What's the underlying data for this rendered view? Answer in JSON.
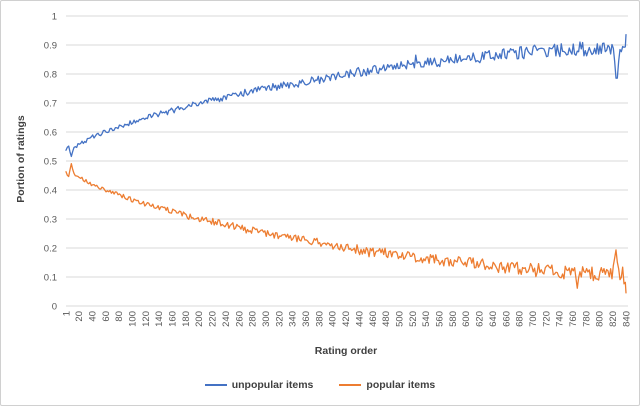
{
  "figure": {
    "background": "#ffffff",
    "border_color": "#d0d0d0"
  },
  "chart_data": {
    "type": "line",
    "title": "",
    "xlabel": "Rating order",
    "ylabel": "Portion of ratings",
    "xlim": [
      1,
      840
    ],
    "ylim": [
      0,
      1
    ],
    "grid": "horizontal",
    "grid_color": "#d9d9d9",
    "axis_text_color": "#595959",
    "axis_title_color": "#404040",
    "legend_position": "bottom-center",
    "y_ticks": [
      "0",
      "0.1",
      "0.2",
      "0.3",
      "0.4",
      "0.5",
      "0.6",
      "0.7",
      "0.8",
      "0.9",
      "1"
    ],
    "x_ticks": [
      1,
      20,
      40,
      60,
      80,
      100,
      120,
      140,
      160,
      180,
      200,
      220,
      240,
      260,
      280,
      300,
      320,
      340,
      360,
      380,
      400,
      420,
      440,
      460,
      480,
      500,
      520,
      540,
      560,
      580,
      600,
      620,
      640,
      660,
      680,
      700,
      720,
      740,
      760,
      780,
      800,
      820,
      840
    ],
    "x_step": 2,
    "noise": {
      "base_amplitude": 0.006,
      "end_amplitude": 0.026,
      "spike_probability": 0.015,
      "spike_factor": 2.2,
      "clamp": [
        0.03,
        0.955
      ]
    },
    "series": [
      {
        "id": "unpopular",
        "name": "unpopular items",
        "color": "#4472c4",
        "noise_seed": 42,
        "anchors": [
          [
            1,
            0.54
          ],
          [
            5,
            0.553
          ],
          [
            9,
            0.511
          ],
          [
            13,
            0.545
          ],
          [
            20,
            0.556
          ],
          [
            30,
            0.569
          ],
          [
            40,
            0.582
          ],
          [
            50,
            0.592
          ],
          [
            60,
            0.601
          ],
          [
            70,
            0.61
          ],
          [
            80,
            0.617
          ],
          [
            90,
            0.625
          ],
          [
            100,
            0.633
          ],
          [
            110,
            0.64
          ],
          [
            120,
            0.649
          ],
          [
            130,
            0.655
          ],
          [
            140,
            0.662
          ],
          [
            150,
            0.667
          ],
          [
            160,
            0.673
          ],
          [
            170,
            0.68
          ],
          [
            180,
            0.688
          ],
          [
            190,
            0.694
          ],
          [
            200,
            0.7
          ],
          [
            220,
            0.708
          ],
          [
            240,
            0.718
          ],
          [
            260,
            0.73
          ],
          [
            280,
            0.741
          ],
          [
            300,
            0.75
          ],
          [
            320,
            0.757
          ],
          [
            340,
            0.765
          ],
          [
            360,
            0.772
          ],
          [
            380,
            0.778
          ],
          [
            400,
            0.79
          ],
          [
            420,
            0.8
          ],
          [
            440,
            0.806
          ],
          [
            460,
            0.812
          ],
          [
            480,
            0.818
          ],
          [
            500,
            0.825
          ],
          [
            520,
            0.83
          ],
          [
            540,
            0.836
          ],
          [
            560,
            0.842
          ],
          [
            580,
            0.847
          ],
          [
            600,
            0.852
          ],
          [
            620,
            0.857
          ],
          [
            640,
            0.862
          ],
          [
            660,
            0.867
          ],
          [
            680,
            0.872
          ],
          [
            700,
            0.876
          ],
          [
            720,
            0.877
          ],
          [
            740,
            0.882
          ],
          [
            760,
            0.886
          ],
          [
            780,
            0.887
          ],
          [
            800,
            0.89
          ],
          [
            812,
            0.897
          ],
          [
            820,
            0.885
          ],
          [
            826,
            0.762
          ],
          [
            831,
            0.9
          ],
          [
            836,
            0.878
          ],
          [
            840,
            0.925
          ]
        ]
      },
      {
        "id": "popular",
        "name": "popular items",
        "color": "#ed7d31",
        "noise_seed": 1337,
        "anchors": [
          [
            1,
            0.46
          ],
          [
            5,
            0.447
          ],
          [
            9,
            0.489
          ],
          [
            13,
            0.455
          ],
          [
            20,
            0.444
          ],
          [
            30,
            0.431
          ],
          [
            40,
            0.418
          ],
          [
            50,
            0.408
          ],
          [
            60,
            0.399
          ],
          [
            70,
            0.39
          ],
          [
            80,
            0.383
          ],
          [
            90,
            0.375
          ],
          [
            100,
            0.367
          ],
          [
            110,
            0.36
          ],
          [
            120,
            0.351
          ],
          [
            130,
            0.345
          ],
          [
            140,
            0.338
          ],
          [
            150,
            0.333
          ],
          [
            160,
            0.327
          ],
          [
            170,
            0.32
          ],
          [
            180,
            0.312
          ],
          [
            190,
            0.306
          ],
          [
            200,
            0.3
          ],
          [
            220,
            0.292
          ],
          [
            240,
            0.282
          ],
          [
            260,
            0.27
          ],
          [
            280,
            0.259
          ],
          [
            300,
            0.25
          ],
          [
            320,
            0.243
          ],
          [
            340,
            0.235
          ],
          [
            360,
            0.228
          ],
          [
            380,
            0.222
          ],
          [
            400,
            0.21
          ],
          [
            420,
            0.2
          ],
          [
            440,
            0.194
          ],
          [
            460,
            0.188
          ],
          [
            480,
            0.182
          ],
          [
            500,
            0.175
          ],
          [
            520,
            0.17
          ],
          [
            540,
            0.164
          ],
          [
            560,
            0.158
          ],
          [
            580,
            0.153
          ],
          [
            600,
            0.148
          ],
          [
            620,
            0.143
          ],
          [
            640,
            0.138
          ],
          [
            660,
            0.133
          ],
          [
            680,
            0.128
          ],
          [
            700,
            0.124
          ],
          [
            720,
            0.123
          ],
          [
            740,
            0.118
          ],
          [
            760,
            0.114
          ],
          [
            780,
            0.113
          ],
          [
            800,
            0.11
          ],
          [
            812,
            0.103
          ],
          [
            820,
            0.115
          ],
          [
            826,
            0.185
          ],
          [
            831,
            0.098
          ],
          [
            836,
            0.112
          ],
          [
            840,
            0.066
          ]
        ]
      }
    ]
  }
}
